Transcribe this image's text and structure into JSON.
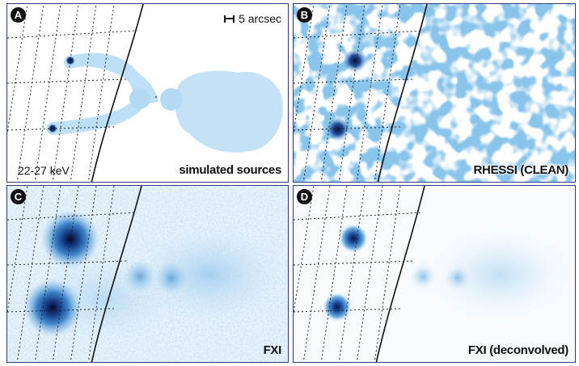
{
  "panels": [
    {
      "letter": "A",
      "caption": "simulated sources",
      "energy": "22-27 keV",
      "scale": "5 arcsec"
    },
    {
      "letter": "B",
      "caption": "RHESSI (CLEAN)"
    },
    {
      "letter": "C",
      "caption": "FXI"
    },
    {
      "letter": "D",
      "caption": "FXI (deconvolved)"
    }
  ],
  "colors": {
    "dark_source": "#0b1a4a",
    "mid_blue": "#3f8fd0",
    "pale_blue": "#b9dbf2",
    "frame": "#2c3d7a"
  }
}
